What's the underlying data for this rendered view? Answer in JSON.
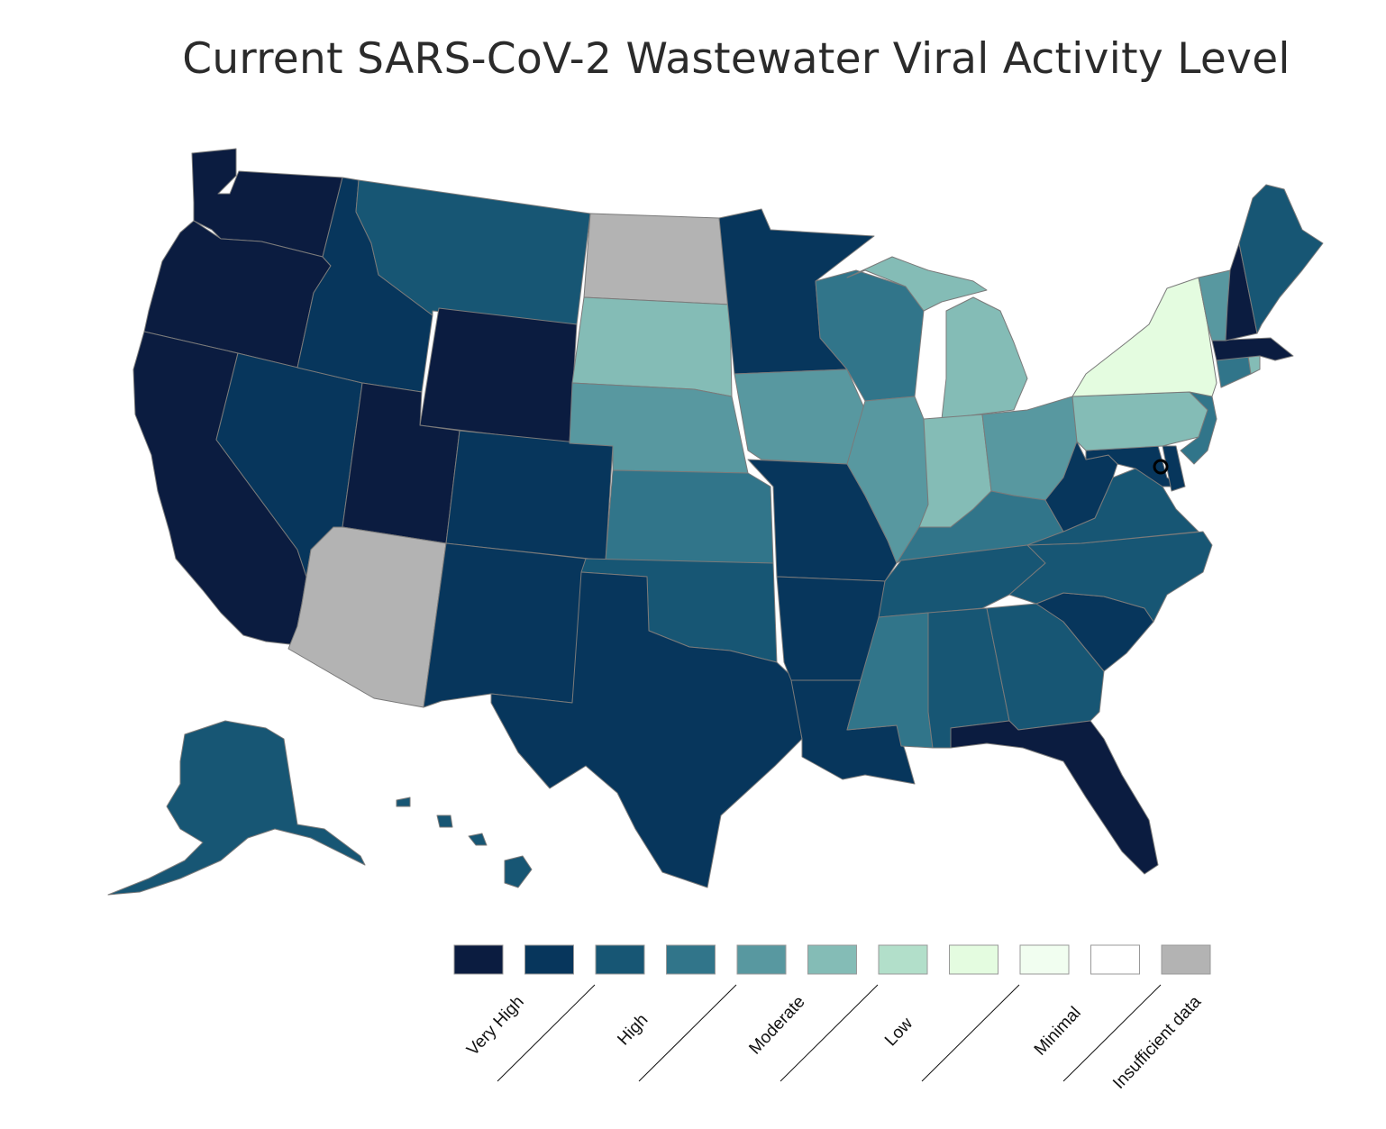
{
  "title": "Current SARS-CoV-2 Wastewater Viral Activity Level",
  "colors": {
    "very_high_1": "#0b1c40",
    "very_high_2": "#07365c",
    "high_1": "#175674",
    "high_2": "#31758a",
    "moderate_1": "#5898a0",
    "moderate_2": "#84bcb6",
    "low_1": "#b2dfca",
    "low_2": "#e4fce0",
    "minimal_1": "#f1fef0",
    "minimal_2": "#ffffff",
    "insufficient": "#b3b3b3",
    "border": "#7a7a7a"
  },
  "legend": {
    "swatches": [
      "#0b1c40",
      "#07365c",
      "#175674",
      "#31758a",
      "#5898a0",
      "#84bcb6",
      "#b2dfca",
      "#e4fce0",
      "#f1fef0",
      "#ffffff",
      "#b3b3b3"
    ],
    "labels": [
      "Very High",
      "High",
      "Moderate",
      "Low",
      "Minimal",
      "Insufficient data"
    ]
  },
  "states": [
    {
      "name": "Washington",
      "level": "very_high_1"
    },
    {
      "name": "Oregon",
      "level": "very_high_1"
    },
    {
      "name": "California",
      "level": "very_high_1"
    },
    {
      "name": "Nevada",
      "level": "very_high_2"
    },
    {
      "name": "Idaho",
      "level": "very_high_2"
    },
    {
      "name": "Montana",
      "level": "high_1"
    },
    {
      "name": "Wyoming",
      "level": "very_high_1"
    },
    {
      "name": "Utah",
      "level": "very_high_1"
    },
    {
      "name": "Arizona",
      "level": "insufficient"
    },
    {
      "name": "Colorado",
      "level": "very_high_2"
    },
    {
      "name": "New Mexico",
      "level": "very_high_2"
    },
    {
      "name": "North Dakota",
      "level": "insufficient"
    },
    {
      "name": "South Dakota",
      "level": "moderate_2"
    },
    {
      "name": "Nebraska",
      "level": "moderate_1"
    },
    {
      "name": "Kansas",
      "level": "high_2"
    },
    {
      "name": "Oklahoma",
      "level": "high_1"
    },
    {
      "name": "Texas",
      "level": "very_high_2"
    },
    {
      "name": "Minnesota",
      "level": "very_high_2"
    },
    {
      "name": "Iowa",
      "level": "moderate_1"
    },
    {
      "name": "Missouri",
      "level": "very_high_2"
    },
    {
      "name": "Arkansas",
      "level": "very_high_2"
    },
    {
      "name": "Louisiana",
      "level": "very_high_2"
    },
    {
      "name": "Wisconsin",
      "level": "high_2"
    },
    {
      "name": "Illinois",
      "level": "moderate_1"
    },
    {
      "name": "Michigan",
      "level": "moderate_2"
    },
    {
      "name": "Indiana",
      "level": "moderate_2"
    },
    {
      "name": "Ohio",
      "level": "moderate_1"
    },
    {
      "name": "Kentucky",
      "level": "high_2"
    },
    {
      "name": "Tennessee",
      "level": "high_1"
    },
    {
      "name": "Mississippi",
      "level": "high_2"
    },
    {
      "name": "Alabama",
      "level": "high_1"
    },
    {
      "name": "Georgia",
      "level": "high_1"
    },
    {
      "name": "Florida",
      "level": "very_high_1"
    },
    {
      "name": "South Carolina",
      "level": "very_high_2"
    },
    {
      "name": "North Carolina",
      "level": "high_1"
    },
    {
      "name": "Virginia",
      "level": "high_1"
    },
    {
      "name": "West Virginia",
      "level": "very_high_2"
    },
    {
      "name": "Maryland",
      "level": "very_high_2"
    },
    {
      "name": "Delaware",
      "level": "very_high_2"
    },
    {
      "name": "Pennsylvania",
      "level": "moderate_2"
    },
    {
      "name": "New Jersey",
      "level": "high_2"
    },
    {
      "name": "New York",
      "level": "low_2"
    },
    {
      "name": "Connecticut",
      "level": "high_2"
    },
    {
      "name": "Rhode Island",
      "level": "moderate_2"
    },
    {
      "name": "Massachusetts",
      "level": "very_high_1"
    },
    {
      "name": "Vermont",
      "level": "moderate_1"
    },
    {
      "name": "New Hampshire",
      "level": "very_high_1"
    },
    {
      "name": "Maine",
      "level": "high_1"
    },
    {
      "name": "Alaska",
      "level": "high_1"
    },
    {
      "name": "Hawaii",
      "level": "high_1"
    }
  ]
}
